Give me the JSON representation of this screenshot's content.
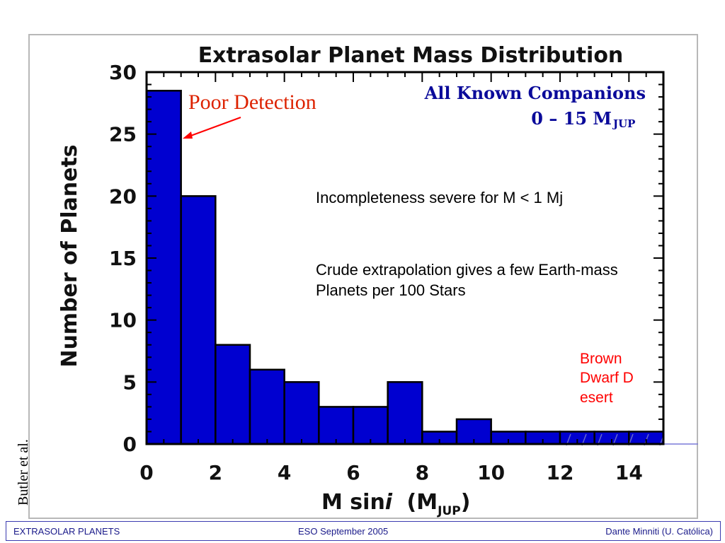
{
  "chart_data": {
    "type": "bar",
    "title": "Extrasolar Planet Mass Distribution",
    "legend_lines": [
      "All Known Companions",
      "0 – 15 M"
    ],
    "legend_subscript": "JUP",
    "xlabel": "M sin",
    "xlabel_italic": "i",
    "xlabel_unit": "(M",
    "xlabel_subscript": "JUP",
    "xlabel_close": ")",
    "ylabel": "Number of Planets",
    "xlim": [
      0,
      15
    ],
    "ylim": [
      0,
      30
    ],
    "xticks": [
      0,
      2,
      4,
      6,
      8,
      10,
      12,
      14
    ],
    "yticks": [
      0,
      5,
      10,
      15,
      20,
      25,
      30
    ],
    "bin_edges": [
      0,
      1,
      2,
      3,
      4,
      5,
      6,
      7,
      8,
      9,
      10,
      11,
      12,
      13,
      14,
      15
    ],
    "values": [
      28.5,
      20,
      8,
      6,
      5,
      3,
      3,
      5,
      1,
      2,
      1,
      1,
      1,
      1,
      1
    ],
    "bar_color": "#0000d0",
    "grid": false
  },
  "annotations": {
    "poor_detection": "Poor  Detection",
    "incompleteness": "Incompleteness severe for M < 1 Mj",
    "extrapolation": "Crude extrapolation gives a few Earth-mass Planets per 100 Stars",
    "brown_dwarf": "Brown Dwarf Desert",
    "credit": "Butler et al."
  },
  "footer": {
    "left": "EXTRASOLAR PLANETS",
    "center": "ESO  September 2005",
    "right": "Dante Minniti (U. Católica)"
  },
  "colors": {
    "accent_red": "#ff0000",
    "legend_blue": "#0a0a9a",
    "footer_blue": "#1a1a8a"
  }
}
